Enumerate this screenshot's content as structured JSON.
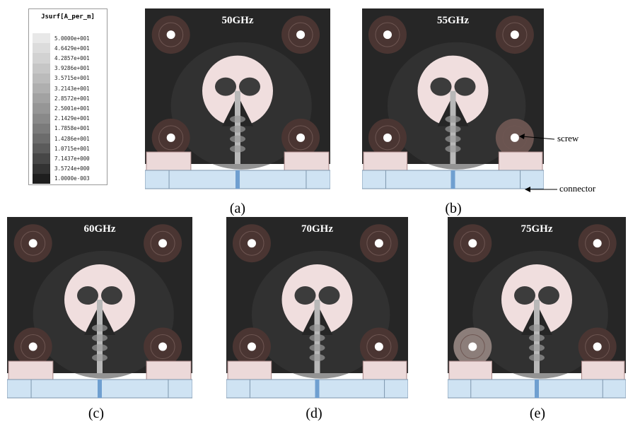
{
  "legend": {
    "title": "Jsurf[A_per_m]",
    "ticks": [
      "5.0000e+001",
      "4.6429e+001",
      "4.2857e+001",
      "3.9286e+001",
      "3.5715e+001",
      "3.2143e+001",
      "2.8572e+001",
      "2.5001e+001",
      "2.1429e+001",
      "1.7858e+001",
      "1.4286e+001",
      "1.0715e+001",
      "7.1437e+000",
      "3.5724e+000",
      "1.0000e-003"
    ],
    "colors": [
      "#e8e8e8",
      "#dcdcdc",
      "#d2d2d2",
      "#c6c6c6",
      "#bbbbbb",
      "#afafaf",
      "#a2a2a2",
      "#969696",
      "#898989",
      "#7b7b7b",
      "#6c6c6c",
      "#5b5b5b",
      "#474747",
      "#333333",
      "#1e1e1e"
    ]
  },
  "panels": [
    {
      "freq": "50GHz",
      "caption": "(a)"
    },
    {
      "freq": "55GHz",
      "caption": "(b)"
    },
    {
      "freq": "60GHz",
      "caption": "(c)"
    },
    {
      "freq": "70GHz",
      "caption": "(d)"
    },
    {
      "freq": "75GHz",
      "caption": "(e)"
    }
  ],
  "annotations": {
    "screw": "screw",
    "connector": "connector"
  },
  "colors": {
    "board": "#262626",
    "patch": "#f0dede",
    "ring": "#4a3532",
    "connector": "#cfe3f3",
    "pad": "#ecd9d9"
  }
}
